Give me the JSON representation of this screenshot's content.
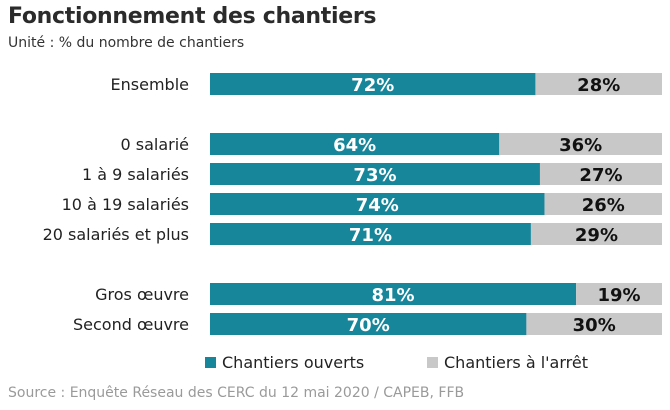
{
  "title": "Fonctionnement des chantiers",
  "subtitle": "Unité : % du nombre de chantiers",
  "source": "Source : Enquête Réseau des CERC du 12 mai 2020 / CAPEB, FFB",
  "chart_data": {
    "type": "bar",
    "orientation": "horizontal",
    "stacked": true,
    "unit": "%",
    "categories": [
      "Ensemble",
      "0 salarié",
      "1 à 9 salariés",
      "10 à 19 salariés",
      "20 salariés et plus",
      "Gros œuvre",
      "Second œuvre"
    ],
    "groups": [
      [
        0
      ],
      [
        1,
        2,
        3,
        4
      ],
      [
        5,
        6
      ]
    ],
    "series": [
      {
        "name": "Chantiers ouverts",
        "values": [
          72,
          64,
          73,
          74,
          71,
          81,
          70
        ],
        "labels": [
          "72%",
          "64%",
          "73%",
          "74%",
          "71%",
          "81%",
          "70%"
        ],
        "color": "#17869b"
      },
      {
        "name": "Chantiers à l'arrêt",
        "values": [
          28,
          36,
          27,
          26,
          29,
          19,
          30
        ],
        "labels": [
          "28%",
          "36%",
          "27%",
          "26%",
          "29%",
          "19%",
          "30%"
        ],
        "color": "#c8c8c8"
      }
    ],
    "xlim": [
      0,
      100
    ],
    "legend_position": "bottom",
    "grid": false
  }
}
